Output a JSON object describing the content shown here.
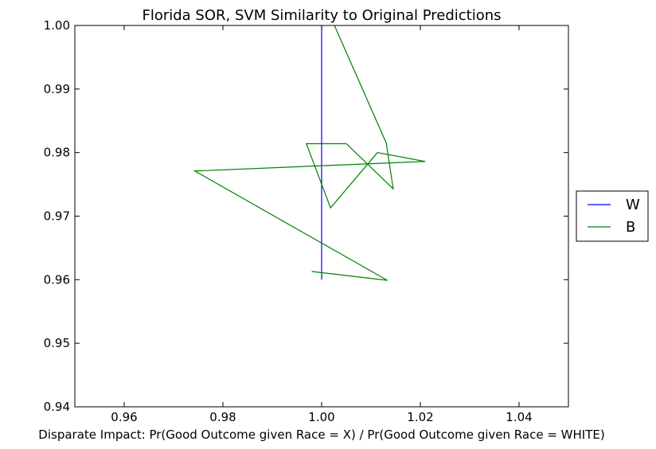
{
  "chart_data": {
    "type": "line",
    "title": "Florida SOR, SVM Similarity to Original Predictions",
    "xlabel": "Disparate Impact: Pr(Good Outcome given Race = X) / Pr(Good Outcome given Race = WHITE)",
    "ylabel": "",
    "xlim": [
      0.95,
      1.05
    ],
    "ylim": [
      0.94,
      1.0
    ],
    "x_ticks": [
      "0.96",
      "0.98",
      "1.00",
      "1.02",
      "1.04"
    ],
    "y_ticks": [
      "0.94",
      "0.95",
      "0.96",
      "0.97",
      "0.98",
      "0.99",
      "1.00"
    ],
    "grid": false,
    "legend_position": "right",
    "series": [
      {
        "name": "W",
        "color": "#0000ff",
        "points": [
          [
            1.0,
            0.96
          ],
          [
            1.0,
            1.0
          ],
          [
            1.0,
            0.9715
          ],
          [
            1.0,
            0.98
          ],
          [
            1.0,
            0.9745
          ],
          [
            1.0,
            0.9795
          ],
          [
            1.0,
            0.9755
          ]
        ]
      },
      {
        "name": "B",
        "color": "#008000",
        "points": [
          [
            0.998,
            0.9613
          ],
          [
            1.0133,
            0.9599
          ],
          [
            0.9743,
            0.9771
          ],
          [
            1.021,
            0.9786
          ],
          [
            1.0113,
            0.98
          ],
          [
            1.0018,
            0.9713
          ],
          [
            0.9969,
            0.9814
          ],
          [
            1.005,
            0.9814
          ],
          [
            1.0145,
            0.9743
          ],
          [
            1.0131,
            0.9815
          ],
          [
            1.0026,
            1.0
          ]
        ]
      }
    ]
  }
}
